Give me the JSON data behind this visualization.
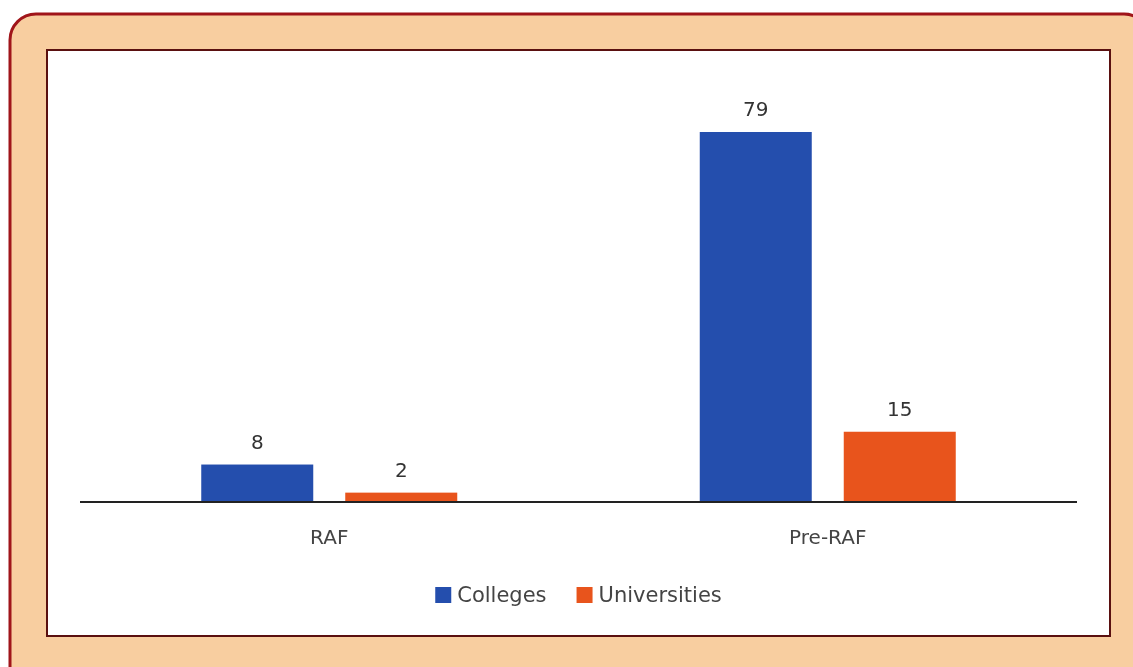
{
  "chart_data": {
    "type": "bar",
    "categories": [
      "RAF",
      "Pre-RAF"
    ],
    "series": [
      {
        "name": "Colleges",
        "color": "#244ead",
        "values": [
          8,
          79
        ]
      },
      {
        "name": "Universities",
        "color": "#e8541c",
        "values": [
          2,
          15
        ]
      }
    ],
    "data_labels": true,
    "legend": "bottom"
  }
}
